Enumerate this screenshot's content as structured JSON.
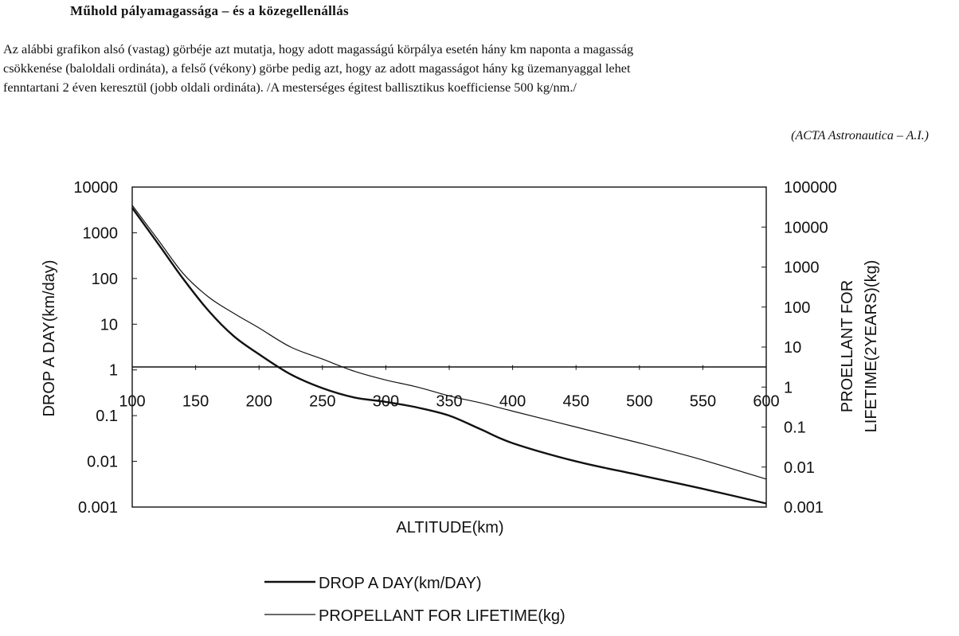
{
  "header": {
    "title": "Műhold pályamagassága – és a közegellenállás"
  },
  "intro": {
    "lines": [
      "Az alábbi grafikon alsó (vastag) görbéje azt mutatja, hogy adott magasságú körpálya esetén hány km naponta a magasság",
      "csökkenése (baloldali ordináta), a felső (vékony) görbe pedig azt, hogy az adott magasságot hány kg üzemanyaggal lehet",
      "fenntartani 2 éven keresztül (jobb oldali ordináta). /A mesterséges égitest ballisztikus koefficiense 500 kg/nm./"
    ],
    "citation": "(ACTA Astronautica – A.I.)"
  },
  "chart_data": {
    "type": "line",
    "xlabel": "ALTITUDE(km)",
    "ylabel_left": "DROP  A DAY(km/day)",
    "ylabel_right": "PROELLANT FOR LIFETIME(2YEARS)(kg)",
    "x_ticks": [
      "100",
      "150",
      "200",
      "250",
      "300",
      "350",
      "400",
      "450",
      "500",
      "550",
      "600"
    ],
    "xlim": [
      100,
      600
    ],
    "y_left_ticks": [
      "10000",
      "1000",
      "100",
      "10",
      "1",
      "0.1",
      "0.01",
      "0.001"
    ],
    "y_left_scale": "log",
    "y_left_lim": [
      0.001,
      10000
    ],
    "y_right_ticks": [
      "100000",
      "10000",
      "1000",
      "100",
      "10",
      "1",
      "0.1",
      "0.01",
      "0.001"
    ],
    "y_right_scale": "log",
    "y_right_lim": [
      0.001,
      100000
    ],
    "legend_position": "bottom-center",
    "grid": false,
    "series": [
      {
        "name": "DROP A DAY(km/DAY)",
        "axis": "left",
        "style": "thick",
        "x": [
          100,
          120,
          140,
          160,
          180,
          200,
          225,
          250,
          275,
          300,
          325,
          350,
          375,
          400,
          450,
          500,
          550,
          600
        ],
        "y": [
          3500,
          600,
          100,
          20,
          5.5,
          2.2,
          0.8,
          0.4,
          0.25,
          0.2,
          0.15,
          0.1,
          0.05,
          0.025,
          0.01,
          0.005,
          0.0025,
          0.0012
        ]
      },
      {
        "name": "PROPELLANT FOR LIFETIME(kg)",
        "axis": "right",
        "style": "thin",
        "x": [
          100,
          120,
          140,
          160,
          180,
          200,
          225,
          250,
          275,
          300,
          325,
          350,
          375,
          400,
          450,
          500,
          550,
          600
        ],
        "y": [
          35000,
          5000,
          700,
          180,
          70,
          30,
          10,
          5,
          2.5,
          1.5,
          1,
          0.6,
          0.4,
          0.25,
          0.1,
          0.04,
          0.015,
          0.005
        ]
      }
    ]
  }
}
